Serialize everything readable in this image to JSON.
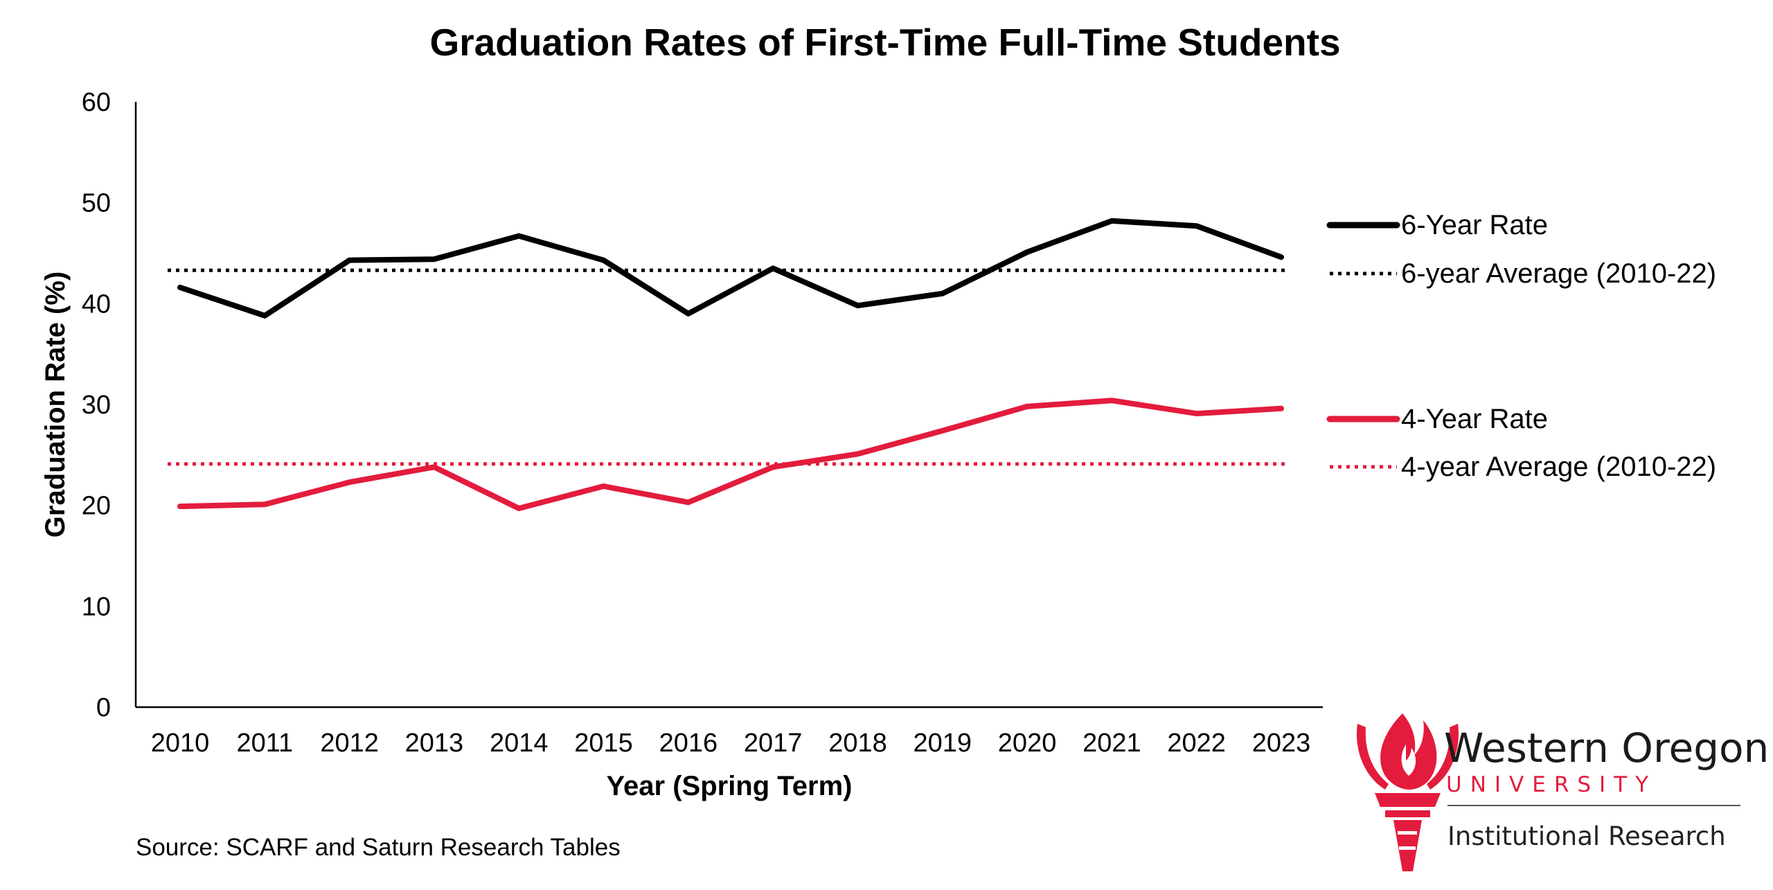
{
  "chart_data": {
    "type": "line",
    "title": "Graduation Rates of First-Time Full-Time Students",
    "xlabel": "Year (Spring Term)",
    "ylabel": "Graduation Rate (%)",
    "ylim": [
      0,
      60
    ],
    "yticks": [
      0,
      10,
      20,
      30,
      40,
      50,
      60
    ],
    "categories": [
      "2010",
      "2011",
      "2012",
      "2013",
      "2014",
      "2015",
      "2016",
      "2017",
      "2018",
      "2019",
      "2020",
      "2021",
      "2022",
      "2023"
    ],
    "series": [
      {
        "name": "6-Year Rate",
        "color": "#000000",
        "style": "solid",
        "values": [
          41.6,
          38.8,
          44.3,
          44.4,
          46.7,
          44.3,
          39.0,
          43.5,
          39.8,
          41.0,
          45.1,
          48.2,
          47.7,
          44.6
        ]
      },
      {
        "name": "6-year Average (2010-22)",
        "color": "#000000",
        "style": "dotted",
        "values": [
          43.3,
          43.3,
          43.3,
          43.3,
          43.3,
          43.3,
          43.3,
          43.3,
          43.3,
          43.3,
          43.3,
          43.3,
          43.3,
          43.3
        ]
      },
      {
        "name": "4-Year Rate",
        "color": "#e31c3d",
        "style": "solid",
        "values": [
          19.9,
          20.1,
          22.3,
          23.8,
          19.7,
          21.9,
          20.3,
          23.8,
          25.1,
          27.4,
          29.8,
          30.4,
          29.1,
          29.6
        ]
      },
      {
        "name": "4-year Average (2010-22)",
        "color": "#e31c3d",
        "style": "dotted",
        "values": [
          24.1,
          24.1,
          24.1,
          24.1,
          24.1,
          24.1,
          24.1,
          24.1,
          24.1,
          24.1,
          24.1,
          24.1,
          24.1,
          24.1
        ]
      }
    ],
    "legend_position": "right",
    "grid": false
  },
  "source": "Source: SCARF and Saturn Research Tables",
  "logo": {
    "name": "Western Oregon",
    "sub": "UNIVERSITY",
    "dept": "Institutional Research",
    "brand_color": "#e31c3d"
  }
}
